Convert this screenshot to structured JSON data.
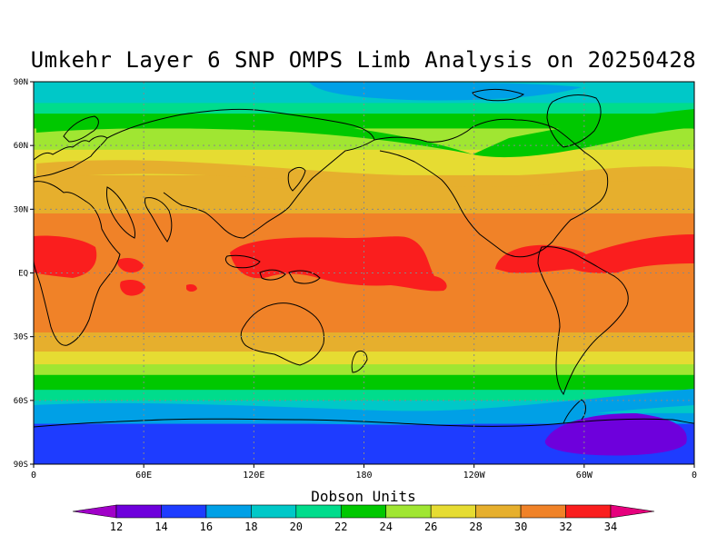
{
  "title": "Umkehr Layer 6 SNP OMPS Limb Analysis on 20250428",
  "legend_title": "Dobson Units",
  "x_ticks": [
    "0",
    "60E",
    "120E",
    "180",
    "120W",
    "60W",
    "0"
  ],
  "y_ticks": [
    "90N",
    "60N",
    "30N",
    "EQ",
    "30S",
    "60S",
    "90S"
  ],
  "colorbar": {
    "labels": [
      "12",
      "14",
      "16",
      "18",
      "20",
      "22",
      "24",
      "26",
      "28",
      "30",
      "32",
      "34"
    ],
    "colors": [
      "#a000c8",
      "#6e00dc",
      "#1e3cff",
      "#00a0e6",
      "#00c8c8",
      "#00dc8c",
      "#00c800",
      "#a0e632",
      "#e6dc32",
      "#e6af2d",
      "#f08228",
      "#fa1e1e",
      "#e6007d"
    ]
  },
  "bands": [
    {
      "lat": 90,
      "color": "#00c8c8"
    },
    {
      "lat": 85,
      "color": "#00c8c8"
    },
    {
      "lat": 80,
      "color": "#00dc8c"
    },
    {
      "lat": 75,
      "color": "#00c800"
    },
    {
      "lat": 68,
      "color": "#a0e632"
    },
    {
      "lat": 58,
      "color": "#e6dc32"
    },
    {
      "lat": 46,
      "color": "#e6af2d"
    },
    {
      "lat": 28,
      "color": "#f08228"
    },
    {
      "lat": -28,
      "color": "#e6af2d"
    },
    {
      "lat": -37,
      "color": "#e6dc32"
    },
    {
      "lat": -43,
      "color": "#a0e632"
    },
    {
      "lat": -48,
      "color": "#00c800"
    },
    {
      "lat": -55,
      "color": "#00dc8c"
    },
    {
      "lat": -60,
      "color": "#00c8c8"
    },
    {
      "lat": -66,
      "color": "#00a0e6"
    },
    {
      "lat": -71,
      "color": "#1e3cff"
    }
  ]
}
